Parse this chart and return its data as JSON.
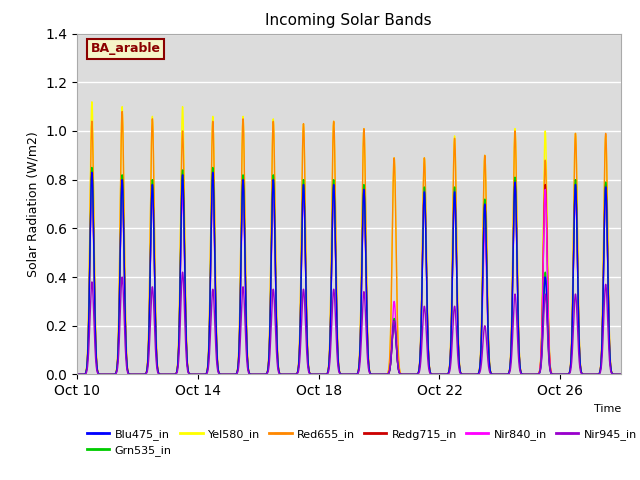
{
  "title": "Incoming Solar Bands",
  "xlabel": "Time",
  "ylabel": "Solar Radiation (W/m2)",
  "ylim": [
    0,
    1.4
  ],
  "background_color": "#dcdcdc",
  "annotation_text": "BA_arable",
  "annotation_color": "#8B0000",
  "annotation_bg": "#f5f5c8",
  "series": {
    "Blu475_in": {
      "color": "#0000ff",
      "lw": 1.0
    },
    "Grn535_in": {
      "color": "#00cc00",
      "lw": 1.0
    },
    "Yel580_in": {
      "color": "#ffff00",
      "lw": 1.0
    },
    "Red655_in": {
      "color": "#ff8800",
      "lw": 1.0
    },
    "Redg715_in": {
      "color": "#cc0000",
      "lw": 1.0
    },
    "Nir840_in": {
      "color": "#ff00ff",
      "lw": 1.0
    },
    "Nir945_in": {
      "color": "#9900cc",
      "lw": 1.0
    }
  },
  "xtick_positions": [
    0,
    4,
    8,
    12,
    16
  ],
  "xtick_labels": [
    "Oct 10",
    "Oct 14",
    "Oct 18",
    "Oct 22",
    "Oct 26"
  ],
  "total_days": 18,
  "daily_peaks": {
    "day": [
      0,
      1,
      2,
      3,
      4,
      5,
      6,
      7,
      8,
      9,
      10,
      11,
      12,
      13,
      14,
      15,
      16,
      17
    ],
    "yel": [
      1.12,
      1.1,
      1.06,
      1.1,
      1.06,
      1.06,
      1.05,
      1.03,
      1.04,
      1.01,
      0.89,
      0.89,
      0.98,
      0.9,
      1.01,
      1.0,
      0.99,
      0.98
    ],
    "red": [
      1.04,
      1.08,
      1.05,
      1.0,
      1.04,
      1.05,
      1.04,
      1.03,
      1.04,
      1.01,
      0.89,
      0.89,
      0.97,
      0.9,
      1.0,
      0.88,
      0.99,
      0.99
    ],
    "redg": [
      0.82,
      0.8,
      0.78,
      0.82,
      0.8,
      0.8,
      0.79,
      0.78,
      0.77,
      0.75,
      0.22,
      0.75,
      0.74,
      0.7,
      0.79,
      0.78,
      0.78,
      0.78
    ],
    "blu": [
      0.83,
      0.8,
      0.78,
      0.82,
      0.83,
      0.8,
      0.8,
      0.78,
      0.78,
      0.76,
      0.22,
      0.75,
      0.75,
      0.7,
      0.79,
      0.4,
      0.78,
      0.77
    ],
    "grn": [
      0.85,
      0.82,
      0.8,
      0.84,
      0.85,
      0.82,
      0.82,
      0.8,
      0.8,
      0.78,
      0.23,
      0.77,
      0.77,
      0.72,
      0.81,
      0.42,
      0.8,
      0.79
    ],
    "nir840": [
      0.8,
      0.78,
      0.76,
      0.75,
      0.78,
      0.76,
      0.76,
      0.76,
      0.76,
      0.74,
      0.3,
      0.76,
      0.76,
      0.6,
      0.77,
      0.76,
      0.76,
      0.76
    ],
    "nir945": [
      0.38,
      0.4,
      0.36,
      0.42,
      0.35,
      0.36,
      0.35,
      0.35,
      0.35,
      0.34,
      0.22,
      0.28,
      0.28,
      0.2,
      0.33,
      0.33,
      0.33,
      0.37
    ]
  },
  "cloud_days": [
    10,
    15,
    17
  ],
  "partial_days": [
    1,
    9
  ]
}
